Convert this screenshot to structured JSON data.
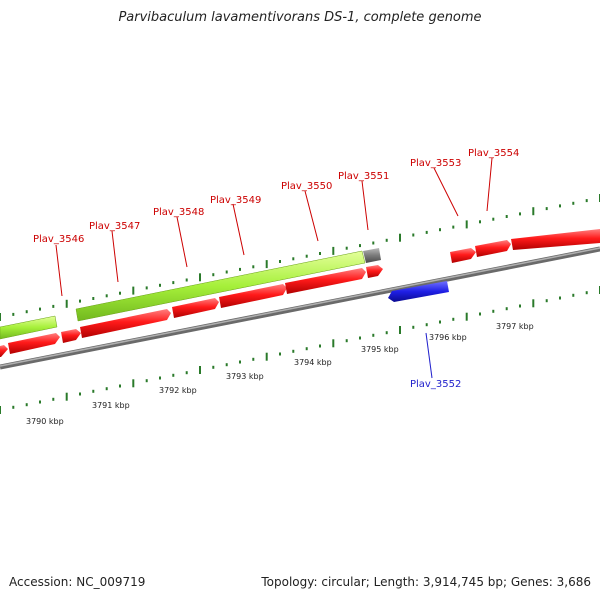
{
  "title": "Parvibaculum lavamentivorans DS-1, complete genome",
  "accession": "Accession: NC_009719",
  "topology": "Topology: circular; Length: 3,914,745 bp; Genes: 3,686",
  "colors": {
    "forward_gene": "#ff0000",
    "reverse_gene": "#1f1fe6",
    "highlight_region": "#a6f03a",
    "gray_region": "#7a7a7a",
    "backbone": "#8a8a8a",
    "tick": "#2a7a2a",
    "forward_label": "#cc0000",
    "reverse_label": "#1f1fcc"
  },
  "scale_labels": [
    "3790 kbp",
    "3791 kbp",
    "3792 kbp",
    "3793 kbp",
    "3794 kbp",
    "3795 kbp",
    "3796 kbp",
    "3797 kbp"
  ],
  "forward_gene_labels": [
    "Plav_3546",
    "Plav_3547",
    "Plav_3548",
    "Plav_3549",
    "Plav_3550",
    "Plav_3551",
    "Plav_3553",
    "Plav_3554"
  ],
  "reverse_gene_labels": [
    "Plav_3552"
  ]
}
